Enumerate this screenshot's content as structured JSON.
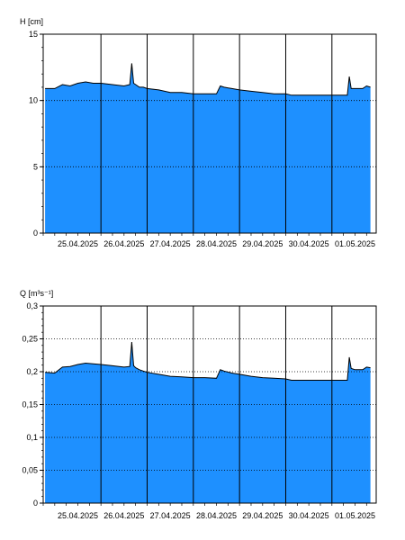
{
  "chart_data": [
    {
      "type": "area",
      "ylabel": "H [cm]",
      "ylim": [
        0,
        15
      ],
      "yticks": [
        0,
        5,
        10,
        15
      ],
      "ytick_labels": [
        "0",
        "5",
        "10",
        "15"
      ],
      "xlim": [
        "2025-04-24T18:00",
        "2025-05-01T23:00"
      ],
      "day_lines": [
        "2025-04-26T00:00",
        "2025-04-27T00:00",
        "2025-04-28T00:00",
        "2025-04-29T00:00",
        "2025-04-30T00:00",
        "2025-05-01T00:00"
      ],
      "x_tick_labels": [
        {
          "at": "2025-04-25T12:00",
          "label": "25.04.2025"
        },
        {
          "at": "2025-04-26T12:00",
          "label": "26.04.2025"
        },
        {
          "at": "2025-04-27T12:00",
          "label": "27.04.2025"
        },
        {
          "at": "2025-04-28T12:00",
          "label": "28.04.2025"
        },
        {
          "at": "2025-04-29T12:00",
          "label": "29.04.2025"
        },
        {
          "at": "2025-04-30T12:00",
          "label": "30.04.2025"
        },
        {
          "at": "2025-05-01T12:00",
          "label": "01.05.2025"
        }
      ],
      "grid": "dotted horizontal at y ticks, solid vertical at day boundaries",
      "fill_color": "#1e90ff",
      "line_color": "#000000",
      "x": [
        "2025-04-24T19:00",
        "2025-04-25T00:00",
        "2025-04-25T04:00",
        "2025-04-25T08:00",
        "2025-04-25T12:00",
        "2025-04-25T16:00",
        "2025-04-25T20:00",
        "2025-04-26T00:00",
        "2025-04-26T06:00",
        "2025-04-26T12:00",
        "2025-04-26T15:00",
        "2025-04-26T16:00",
        "2025-04-26T17:00",
        "2025-04-26T18:00",
        "2025-04-26T20:00",
        "2025-04-26T22:00",
        "2025-04-27T00:00",
        "2025-04-27T06:00",
        "2025-04-27T12:00",
        "2025-04-27T18:00",
        "2025-04-28T00:00",
        "2025-04-28T06:00",
        "2025-04-28T12:00",
        "2025-04-28T14:00",
        "2025-04-28T16:00",
        "2025-04-28T20:00",
        "2025-04-29T00:00",
        "2025-04-29T06:00",
        "2025-04-29T12:00",
        "2025-04-29T18:00",
        "2025-04-30T00:00",
        "2025-04-30T03:00",
        "2025-04-30T06:00",
        "2025-04-30T12:00",
        "2025-04-30T18:00",
        "2025-05-01T00:00",
        "2025-05-01T08:00",
        "2025-05-01T09:00",
        "2025-05-01T10:00",
        "2025-05-01T12:00",
        "2025-05-01T16:00",
        "2025-05-01T18:00",
        "2025-05-01T20:00"
      ],
      "values": [
        10.9,
        10.9,
        11.2,
        11.1,
        11.3,
        11.4,
        11.3,
        11.3,
        11.2,
        11.1,
        11.2,
        12.8,
        11.3,
        11.2,
        11.0,
        11.0,
        10.9,
        10.8,
        10.6,
        10.6,
        10.5,
        10.5,
        10.5,
        11.1,
        11.0,
        10.9,
        10.8,
        10.7,
        10.6,
        10.5,
        10.5,
        10.4,
        10.4,
        10.4,
        10.4,
        10.4,
        10.4,
        11.8,
        10.9,
        10.9,
        10.9,
        11.1,
        11.0
      ]
    },
    {
      "type": "area",
      "ylabel": "Q [m³s⁻¹]",
      "ylim": [
        0,
        0.3
      ],
      "yticks": [
        0,
        0.05,
        0.1,
        0.15,
        0.2,
        0.25,
        0.3
      ],
      "ytick_labels": [
        "0",
        "0,05",
        "0,1",
        "0,15",
        "0,2",
        "0,25",
        "0,3"
      ],
      "xlim": [
        "2025-04-24T18:00",
        "2025-05-01T23:00"
      ],
      "day_lines": [
        "2025-04-26T00:00",
        "2025-04-27T00:00",
        "2025-04-28T00:00",
        "2025-04-29T00:00",
        "2025-04-30T00:00",
        "2025-05-01T00:00"
      ],
      "x_tick_labels": [
        {
          "at": "2025-04-25T12:00",
          "label": "25.04.2025"
        },
        {
          "at": "2025-04-26T12:00",
          "label": "26.04.2025"
        },
        {
          "at": "2025-04-27T12:00",
          "label": "27.04.2025"
        },
        {
          "at": "2025-04-28T12:00",
          "label": "28.04.2025"
        },
        {
          "at": "2025-04-29T12:00",
          "label": "29.04.2025"
        },
        {
          "at": "2025-04-30T12:00",
          "label": "30.04.2025"
        },
        {
          "at": "2025-05-01T12:00",
          "label": "01.05.2025"
        }
      ],
      "grid": "dotted horizontal at y ticks, solid vertical at day boundaries",
      "fill_color": "#1e90ff",
      "line_color": "#000000",
      "x": [
        "2025-04-24T19:00",
        "2025-04-25T00:00",
        "2025-04-25T04:00",
        "2025-04-25T08:00",
        "2025-04-25T12:00",
        "2025-04-25T16:00",
        "2025-04-25T20:00",
        "2025-04-26T00:00",
        "2025-04-26T06:00",
        "2025-04-26T12:00",
        "2025-04-26T15:00",
        "2025-04-26T16:00",
        "2025-04-26T17:00",
        "2025-04-26T18:00",
        "2025-04-26T20:00",
        "2025-04-26T22:00",
        "2025-04-27T00:00",
        "2025-04-27T06:00",
        "2025-04-27T12:00",
        "2025-04-27T18:00",
        "2025-04-28T00:00",
        "2025-04-28T06:00",
        "2025-04-28T12:00",
        "2025-04-28T14:00",
        "2025-04-28T16:00",
        "2025-04-28T20:00",
        "2025-04-29T00:00",
        "2025-04-29T06:00",
        "2025-04-29T12:00",
        "2025-04-29T18:00",
        "2025-04-30T00:00",
        "2025-04-30T03:00",
        "2025-04-30T06:00",
        "2025-04-30T12:00",
        "2025-04-30T18:00",
        "2025-05-01T00:00",
        "2025-05-01T08:00",
        "2025-05-01T09:00",
        "2025-05-01T10:00",
        "2025-05-01T12:00",
        "2025-05-01T16:00",
        "2025-05-01T18:00",
        "2025-05-01T20:00"
      ],
      "values": [
        0.199,
        0.198,
        0.207,
        0.208,
        0.211,
        0.213,
        0.212,
        0.211,
        0.209,
        0.207,
        0.208,
        0.245,
        0.209,
        0.206,
        0.203,
        0.201,
        0.199,
        0.196,
        0.193,
        0.192,
        0.191,
        0.191,
        0.19,
        0.203,
        0.201,
        0.198,
        0.196,
        0.193,
        0.191,
        0.19,
        0.189,
        0.187,
        0.187,
        0.187,
        0.187,
        0.187,
        0.187,
        0.222,
        0.205,
        0.203,
        0.203,
        0.207,
        0.206
      ]
    }
  ]
}
